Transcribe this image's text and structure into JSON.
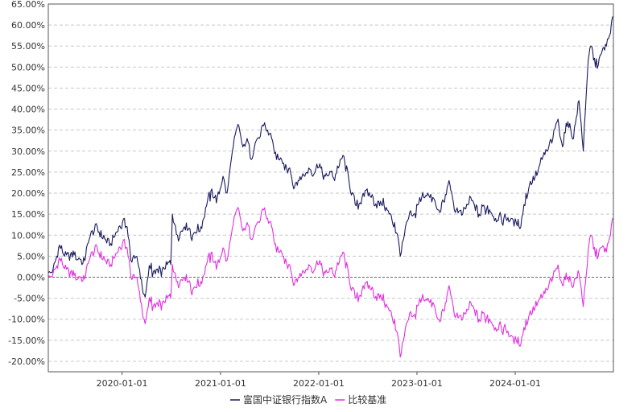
{
  "chart_data": {
    "type": "line",
    "title": "",
    "xlabel": "",
    "ylabel": "",
    "x_range": [
      "2019-04-02",
      "2024-12-31"
    ],
    "x_ticks": [
      "2020-01-01",
      "2021-01-01",
      "2022-01-01",
      "2023-01-01",
      "2024-01-01"
    ],
    "y_range": [
      -0.225,
      0.65
    ],
    "y_ticks": [
      0.65,
      0.6,
      0.55,
      0.5,
      0.45,
      0.4,
      0.35,
      0.3,
      0.25,
      0.2,
      0.15,
      0.1,
      0.05,
      0.0,
      -0.05,
      -0.1,
      -0.15,
      -0.2
    ],
    "y_tick_labels": [
      "65.00%",
      "60.00%",
      "55.00%",
      "50.00%",
      "45.00%",
      "40.00%",
      "35.00%",
      "30.00%",
      "25.00%",
      "20.00%",
      "15.00%",
      "10.00%",
      "5.00%",
      "0.00%",
      "-5.00%",
      "-10.00%",
      "-15.00%",
      "-20.00%"
    ],
    "y_format": "percent",
    "grid": "horizontal-dashed",
    "zero_line": "dashed",
    "legend_position": "bottom-center",
    "series": [
      {
        "name": "富国中证银行指数A",
        "color": "#1a1a5e",
        "points": [
          [
            "2019-04-02",
            0.01
          ],
          [
            "2019-04-20",
            0.02
          ],
          [
            "2019-05-10",
            0.07
          ],
          [
            "2019-06-01",
            0.05
          ],
          [
            "2019-06-20",
            0.04
          ],
          [
            "2019-07-10",
            0.06
          ],
          [
            "2019-08-05",
            0.03
          ],
          [
            "2019-09-01",
            0.09
          ],
          [
            "2019-10-01",
            0.12
          ],
          [
            "2019-10-25",
            0.1
          ],
          [
            "2019-11-20",
            0.08
          ],
          [
            "2019-12-20",
            0.12
          ],
          [
            "2020-01-10",
            0.14
          ],
          [
            "2020-01-20",
            0.12
          ],
          [
            "2020-02-03",
            0.04
          ],
          [
            "2020-02-25",
            0.05
          ],
          [
            "2020-03-23",
            -0.04
          ],
          [
            "2020-04-15",
            0.02
          ],
          [
            "2020-05-15",
            0.01
          ],
          [
            "2020-06-10",
            0.02
          ],
          [
            "2020-06-30",
            0.03
          ],
          [
            "2020-07-06",
            0.15
          ],
          [
            "2020-07-25",
            0.1
          ],
          [
            "2020-08-20",
            0.12
          ],
          [
            "2020-09-20",
            0.1
          ],
          [
            "2020-10-20",
            0.12
          ],
          [
            "2020-11-10",
            0.17
          ],
          [
            "2020-11-30",
            0.21
          ],
          [
            "2020-12-20",
            0.19
          ],
          [
            "2021-01-10",
            0.24
          ],
          [
            "2021-01-25",
            0.2
          ],
          [
            "2021-02-10",
            0.28
          ],
          [
            "2021-02-25",
            0.34
          ],
          [
            "2021-03-10",
            0.36
          ],
          [
            "2021-03-25",
            0.31
          ],
          [
            "2021-04-10",
            0.33
          ],
          [
            "2021-04-25",
            0.28
          ],
          [
            "2021-05-10",
            0.32
          ],
          [
            "2021-05-25",
            0.33
          ],
          [
            "2021-06-10",
            0.36
          ],
          [
            "2021-06-25",
            0.35
          ],
          [
            "2021-07-10",
            0.33
          ],
          [
            "2021-07-28",
            0.28
          ],
          [
            "2021-08-20",
            0.27
          ],
          [
            "2021-09-15",
            0.26
          ],
          [
            "2021-09-30",
            0.21
          ],
          [
            "2021-10-20",
            0.23
          ],
          [
            "2021-11-10",
            0.24
          ],
          [
            "2021-11-25",
            0.26
          ],
          [
            "2021-12-10",
            0.24
          ],
          [
            "2022-01-05",
            0.27
          ],
          [
            "2022-01-25",
            0.24
          ],
          [
            "2022-02-15",
            0.25
          ],
          [
            "2022-03-01",
            0.23
          ],
          [
            "2022-03-15",
            0.26
          ],
          [
            "2022-04-01",
            0.29
          ],
          [
            "2022-04-25",
            0.22
          ],
          [
            "2022-05-20",
            0.17
          ],
          [
            "2022-06-15",
            0.2
          ],
          [
            "2022-07-15",
            0.19
          ],
          [
            "2022-08-15",
            0.17
          ],
          [
            "2022-09-01",
            0.17
          ],
          [
            "2022-09-20",
            0.15
          ],
          [
            "2022-10-10",
            0.13
          ],
          [
            "2022-10-31",
            0.05
          ],
          [
            "2022-11-15",
            0.1
          ],
          [
            "2022-12-01",
            0.14
          ],
          [
            "2022-12-20",
            0.15
          ],
          [
            "2023-01-15",
            0.18
          ],
          [
            "2023-02-10",
            0.2
          ],
          [
            "2023-03-01",
            0.19
          ],
          [
            "2023-03-20",
            0.16
          ],
          [
            "2023-04-10",
            0.18
          ],
          [
            "2023-04-30",
            0.23
          ],
          [
            "2023-05-20",
            0.16
          ],
          [
            "2023-06-20",
            0.15
          ],
          [
            "2023-07-20",
            0.19
          ],
          [
            "2023-08-20",
            0.15
          ],
          [
            "2023-09-20",
            0.17
          ],
          [
            "2023-10-20",
            0.14
          ],
          [
            "2023-11-20",
            0.14
          ],
          [
            "2023-12-20",
            0.14
          ],
          [
            "2024-01-05",
            0.13
          ],
          [
            "2024-01-22",
            0.12
          ],
          [
            "2024-02-10",
            0.2
          ],
          [
            "2024-03-01",
            0.22
          ],
          [
            "2024-03-25",
            0.25
          ],
          [
            "2024-04-10",
            0.28
          ],
          [
            "2024-05-01",
            0.3
          ],
          [
            "2024-05-20",
            0.33
          ],
          [
            "2024-06-05",
            0.37
          ],
          [
            "2024-06-25",
            0.31
          ],
          [
            "2024-07-15",
            0.37
          ],
          [
            "2024-08-05",
            0.33
          ],
          [
            "2024-08-25",
            0.42
          ],
          [
            "2024-09-10",
            0.3
          ],
          [
            "2024-09-25",
            0.48
          ],
          [
            "2024-10-08",
            0.55
          ],
          [
            "2024-10-25",
            0.5
          ],
          [
            "2024-11-15",
            0.53
          ],
          [
            "2024-12-05",
            0.55
          ],
          [
            "2024-12-20",
            0.58
          ],
          [
            "2024-12-31",
            0.62
          ]
        ]
      },
      {
        "name": "比较基准",
        "color": "#e030e0",
        "points": [
          [
            "2019-04-02",
            0.0
          ],
          [
            "2019-04-20",
            0.01
          ],
          [
            "2019-05-10",
            0.04
          ],
          [
            "2019-06-01",
            0.02
          ],
          [
            "2019-06-20",
            0.0
          ],
          [
            "2019-07-10",
            0.01
          ],
          [
            "2019-08-05",
            -0.01
          ],
          [
            "2019-09-01",
            0.04
          ],
          [
            "2019-10-01",
            0.07
          ],
          [
            "2019-10-25",
            0.05
          ],
          [
            "2019-11-20",
            0.03
          ],
          [
            "2019-12-20",
            0.07
          ],
          [
            "2020-01-10",
            0.09
          ],
          [
            "2020-01-20",
            0.07
          ],
          [
            "2020-02-03",
            0.0
          ],
          [
            "2020-02-25",
            0.0
          ],
          [
            "2020-03-23",
            -0.1
          ],
          [
            "2020-04-15",
            -0.06
          ],
          [
            "2020-05-15",
            -0.07
          ],
          [
            "2020-06-10",
            -0.06
          ],
          [
            "2020-06-30",
            -0.05
          ],
          [
            "2020-07-06",
            0.03
          ],
          [
            "2020-07-25",
            -0.01
          ],
          [
            "2020-08-20",
            0.0
          ],
          [
            "2020-09-20",
            -0.03
          ],
          [
            "2020-10-20",
            -0.01
          ],
          [
            "2020-11-10",
            0.03
          ],
          [
            "2020-11-30",
            0.06
          ],
          [
            "2020-12-20",
            0.03
          ],
          [
            "2021-01-10",
            0.07
          ],
          [
            "2021-01-25",
            0.04
          ],
          [
            "2021-02-10",
            0.1
          ],
          [
            "2021-02-25",
            0.15
          ],
          [
            "2021-03-10",
            0.16
          ],
          [
            "2021-03-25",
            0.11
          ],
          [
            "2021-04-10",
            0.13
          ],
          [
            "2021-04-25",
            0.09
          ],
          [
            "2021-05-10",
            0.12
          ],
          [
            "2021-05-25",
            0.13
          ],
          [
            "2021-06-10",
            0.16
          ],
          [
            "2021-06-25",
            0.14
          ],
          [
            "2021-07-10",
            0.12
          ],
          [
            "2021-07-28",
            0.06
          ],
          [
            "2021-08-20",
            0.05
          ],
          [
            "2021-09-15",
            0.03
          ],
          [
            "2021-09-30",
            -0.02
          ],
          [
            "2021-10-20",
            0.0
          ],
          [
            "2021-11-10",
            0.01
          ],
          [
            "2021-11-25",
            0.03
          ],
          [
            "2021-12-10",
            0.01
          ],
          [
            "2022-01-05",
            0.04
          ],
          [
            "2022-01-25",
            0.01
          ],
          [
            "2022-02-15",
            0.02
          ],
          [
            "2022-03-01",
            0.0
          ],
          [
            "2022-03-15",
            0.03
          ],
          [
            "2022-04-01",
            0.06
          ],
          [
            "2022-04-25",
            -0.01
          ],
          [
            "2022-05-20",
            -0.05
          ],
          [
            "2022-06-15",
            -0.02
          ],
          [
            "2022-07-15",
            -0.03
          ],
          [
            "2022-08-15",
            -0.05
          ],
          [
            "2022-09-01",
            -0.06
          ],
          [
            "2022-09-20",
            -0.08
          ],
          [
            "2022-10-10",
            -0.1
          ],
          [
            "2022-10-31",
            -0.19
          ],
          [
            "2022-11-15",
            -0.14
          ],
          [
            "2022-12-01",
            -0.1
          ],
          [
            "2022-12-20",
            -0.09
          ],
          [
            "2023-01-15",
            -0.06
          ],
          [
            "2023-02-10",
            -0.05
          ],
          [
            "2023-03-01",
            -0.06
          ],
          [
            "2023-03-20",
            -0.1
          ],
          [
            "2023-04-10",
            -0.08
          ],
          [
            "2023-04-30",
            -0.02
          ],
          [
            "2023-05-20",
            -0.09
          ],
          [
            "2023-06-20",
            -0.1
          ],
          [
            "2023-07-20",
            -0.06
          ],
          [
            "2023-08-20",
            -0.1
          ],
          [
            "2023-09-20",
            -0.09
          ],
          [
            "2023-10-20",
            -0.12
          ],
          [
            "2023-11-20",
            -0.12
          ],
          [
            "2023-12-20",
            -0.14
          ],
          [
            "2024-01-05",
            -0.15
          ],
          [
            "2024-01-22",
            -0.16
          ],
          [
            "2024-02-10",
            -0.1
          ],
          [
            "2024-03-01",
            -0.09
          ],
          [
            "2024-03-25",
            -0.06
          ],
          [
            "2024-04-10",
            -0.05
          ],
          [
            "2024-05-01",
            -0.03
          ],
          [
            "2024-05-20",
            0.0
          ],
          [
            "2024-06-05",
            0.02
          ],
          [
            "2024-06-25",
            -0.02
          ],
          [
            "2024-07-15",
            0.0
          ],
          [
            "2024-08-05",
            -0.02
          ],
          [
            "2024-08-25",
            0.01
          ],
          [
            "2024-09-10",
            -0.07
          ],
          [
            "2024-09-25",
            0.03
          ],
          [
            "2024-10-08",
            0.1
          ],
          [
            "2024-10-25",
            0.05
          ],
          [
            "2024-11-15",
            0.07
          ],
          [
            "2024-12-05",
            0.06
          ],
          [
            "2024-12-20",
            0.1
          ],
          [
            "2024-12-31",
            0.14
          ]
        ]
      }
    ]
  }
}
